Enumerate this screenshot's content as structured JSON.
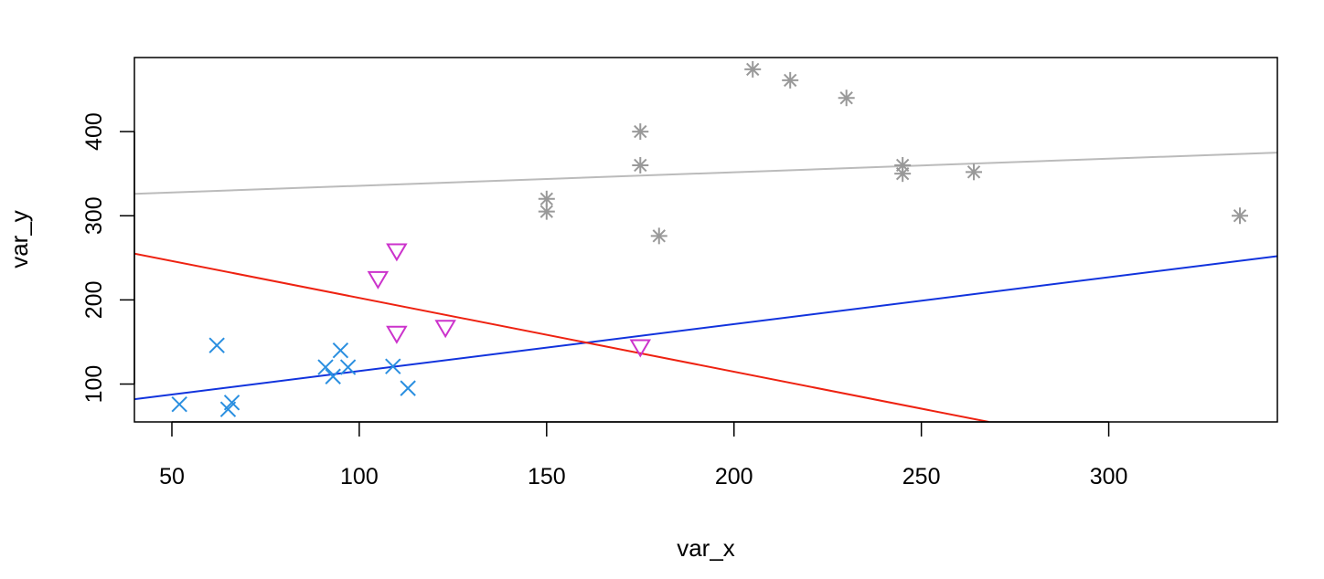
{
  "chart_data": {
    "type": "scatter",
    "title": "",
    "xlabel": "var_x",
    "ylabel": "var_y",
    "xlim": [
      40,
      345
    ],
    "ylim": [
      55,
      488
    ],
    "x_ticks": [
      50,
      100,
      150,
      200,
      250,
      300
    ],
    "x_tick_labels": [
      "50",
      "100",
      "150",
      "200",
      "250",
      "300"
    ],
    "y_ticks": [
      100,
      200,
      300,
      400
    ],
    "y_tick_labels": [
      "100",
      "200",
      "300",
      "400"
    ],
    "grid": false,
    "legend": "none",
    "series": [
      {
        "marker": "x",
        "color": "#2A8FE0",
        "points": [
          [
            52,
            76
          ],
          [
            62,
            146
          ],
          [
            65,
            70
          ],
          [
            66,
            78
          ],
          [
            91,
            120
          ],
          [
            93,
            109
          ],
          [
            95,
            140
          ],
          [
            97,
            120
          ],
          [
            109,
            121
          ],
          [
            113,
            95
          ]
        ],
        "trend": {
          "color": "#1133DD",
          "x": [
            40,
            345
          ],
          "y": [
            82,
            252
          ]
        }
      },
      {
        "marker": "triangle-down",
        "color": "#CC33CC",
        "points": [
          [
            105,
            225
          ],
          [
            110,
            258
          ],
          [
            110,
            160
          ],
          [
            123,
            167
          ],
          [
            175,
            144
          ]
        ],
        "trend": {
          "color": "#EE2211",
          "x": [
            40,
            268
          ],
          "y": [
            255,
            55
          ]
        }
      },
      {
        "marker": "asterisk",
        "color": "#999999",
        "points": [
          [
            150,
            305
          ],
          [
            150,
            320
          ],
          [
            175,
            400
          ],
          [
            175,
            360
          ],
          [
            180,
            276
          ],
          [
            205,
            474
          ],
          [
            215,
            461
          ],
          [
            230,
            440
          ],
          [
            245,
            360
          ],
          [
            245,
            350
          ],
          [
            264,
            352
          ],
          [
            335,
            300
          ]
        ],
        "trend": {
          "color": "#BBBBBB",
          "x": [
            40,
            345
          ],
          "y": [
            326,
            375
          ]
        }
      }
    ]
  }
}
